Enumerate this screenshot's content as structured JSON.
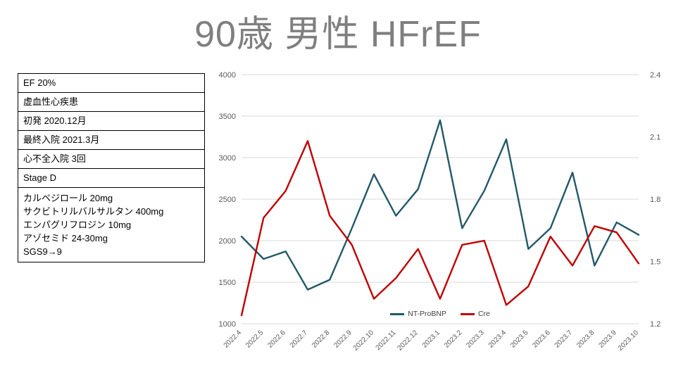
{
  "title": "90歳 男性 HFrEF",
  "patient_table": {
    "rows": [
      "EF 20%",
      "虚血性心疾患",
      "初発 2020.12月",
      "最終入院 2021.3月",
      "心不全入院 3回",
      "Stage D"
    ],
    "medications": [
      "カルベジロール 20mg",
      "サクビトリルバルサルタン 400mg",
      "エンパグリフロジン 10mg",
      "アゾセミド 24-30mg",
      "SGS9→9"
    ]
  },
  "chart_data": {
    "type": "line",
    "title": "",
    "categories": [
      "2022.4",
      "2022.5",
      "2022.6",
      "2022.7",
      "2022.8",
      "2022.9",
      "2022.10",
      "2022.11",
      "2022.12",
      "2023.1",
      "2023.2",
      "2023.3",
      "2023.4",
      "2023.5",
      "2023.6",
      "2023.7",
      "2023.8",
      "2023.9",
      "2023.10"
    ],
    "series": [
      {
        "name": "NT-ProBNP",
        "axis": "left",
        "color": "#215968",
        "values": [
          2050,
          1780,
          1870,
          1410,
          1530,
          2150,
          2800,
          2300,
          2620,
          3450,
          2150,
          2600,
          3220,
          1900,
          2150,
          2820,
          1700,
          2220,
          2070
        ]
      },
      {
        "name": "Cre",
        "axis": "right",
        "color": "#c00000",
        "values": [
          1.24,
          1.71,
          1.84,
          2.08,
          1.72,
          1.58,
          1.32,
          1.42,
          1.56,
          1.32,
          1.58,
          1.6,
          1.29,
          1.38,
          1.62,
          1.48,
          1.67,
          1.64,
          1.49
        ]
      }
    ],
    "left_axis": {
      "range": [
        1000,
        4000
      ],
      "ticks": [
        "1000",
        "1500",
        "2000",
        "2500",
        "3000",
        "3500",
        "4000"
      ]
    },
    "right_axis": {
      "range": [
        1.2,
        2.4
      ],
      "ticks": [
        "1.2",
        "1.5",
        "1.8",
        "2.1",
        "2.4"
      ]
    },
    "grid": true,
    "legend_position": "bottom-center-inside"
  },
  "colors": {
    "title_text": "#7f7f7f",
    "grid": "#d9d9d9",
    "axis_text": "#595959",
    "table_border": "#000000"
  }
}
